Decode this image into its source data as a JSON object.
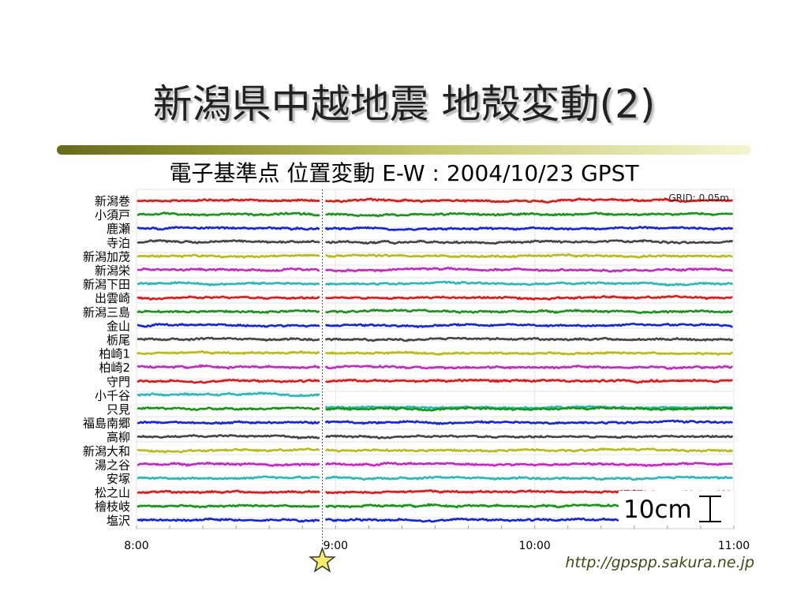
{
  "slide": {
    "title": "新潟県中越地震 地殻変動(2)",
    "source_url": "http://gpspp.sakura.ne.jp"
  },
  "chart_data": {
    "type": "line",
    "title": "電子基準点 位置変動 E-W : 2004/10/23 GPST",
    "grid_label": "GRID: 0.05m",
    "scale_label": "10cm",
    "xlabel": "",
    "ylabel": "",
    "x_ticks": [
      "8:00",
      "9:00",
      "10:00",
      "11:00"
    ],
    "xlim": [
      "8:00",
      "11:00"
    ],
    "grid": true,
    "event_marker": {
      "time": "8:56",
      "symbol": "star",
      "color": "#f7ec6a"
    },
    "series": [
      {
        "name": "新潟巻",
        "color": "#ee1111",
        "offset_m": 0.0
      },
      {
        "name": "小須戸",
        "color": "#119911",
        "offset_m": 0.0
      },
      {
        "name": "鹿瀬",
        "color": "#1122ee",
        "offset_m": 0.0
      },
      {
        "name": "寺泊",
        "color": "#444444",
        "offset_m": 0.0
      },
      {
        "name": "新潟加茂",
        "color": "#bbbb11",
        "offset_m": 0.0
      },
      {
        "name": "新潟栄",
        "color": "#cc22cc",
        "offset_m": 0.0
      },
      {
        "name": "新潟下田",
        "color": "#22bbbb",
        "offset_m": 0.0
      },
      {
        "name": "出雲崎",
        "color": "#ee1111",
        "offset_m": 0.0
      },
      {
        "name": "新潟三島",
        "color": "#119911",
        "offset_m": 0.0
      },
      {
        "name": "金山",
        "color": "#1122ee",
        "offset_m": 0.0
      },
      {
        "name": "栃尾",
        "color": "#444444",
        "offset_m": 0.0
      },
      {
        "name": "柏崎1",
        "color": "#bbbb11",
        "offset_m": 0.0
      },
      {
        "name": "柏崎2",
        "color": "#cc22cc",
        "offset_m": 0.0
      },
      {
        "name": "守門",
        "color": "#ee1111",
        "offset_m": 0.0
      },
      {
        "name": "小千谷",
        "color": "#22bbbb",
        "offset_m": -0.05
      },
      {
        "name": "只見",
        "color": "#119911",
        "offset_m": 0.0
      },
      {
        "name": "福島南郷",
        "color": "#1122ee",
        "offset_m": 0.0
      },
      {
        "name": "高柳",
        "color": "#444444",
        "offset_m": 0.0
      },
      {
        "name": "新潟大和",
        "color": "#bbbb11",
        "offset_m": 0.0
      },
      {
        "name": "湯之谷",
        "color": "#cc22cc",
        "offset_m": 0.0
      },
      {
        "name": "安塚",
        "color": "#22bbbb",
        "offset_m": 0.0
      },
      {
        "name": "松之山",
        "color": "#ee1111",
        "offset_m": 0.0
      },
      {
        "name": "檜枝岐",
        "color": "#119911",
        "offset_m": 0.0
      },
      {
        "name": "塩沢",
        "color": "#1122ee",
        "offset_m": 0.0
      }
    ]
  }
}
